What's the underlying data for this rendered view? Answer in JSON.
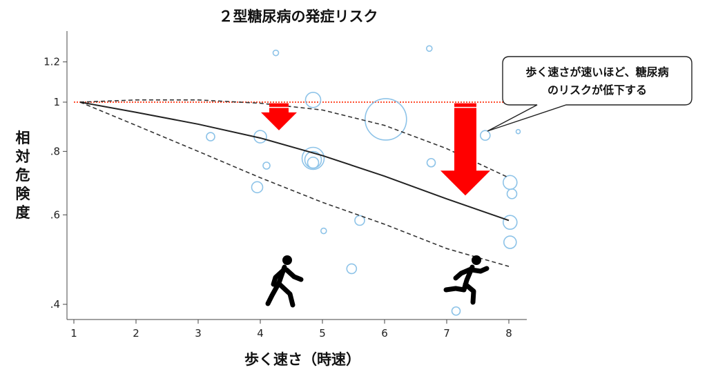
{
  "chart_data": {
    "type": "scatter",
    "title": "２型糖尿病の発症リスク",
    "xlabel": "歩く速さ（時速）",
    "ylabel": "相対危険度",
    "xlim": [
      1,
      8.3
    ],
    "ylim": [
      0.375,
      1.4
    ],
    "y_scale": "log",
    "x_ticks": [
      1,
      2,
      3,
      4,
      5,
      6,
      7,
      8
    ],
    "y_ticks": [
      {
        "value": 0.4,
        "label": ".4"
      },
      {
        "value": 0.6,
        "label": ".6"
      },
      {
        "value": 0.8,
        "label": ".8"
      },
      {
        "value": 1.0,
        "label": "1"
      },
      {
        "value": 1.2,
        "label": "1.2"
      }
    ],
    "reference_line": {
      "y": 1.0,
      "color": "#ff4d2e",
      "style": "dotted"
    },
    "fit_line": {
      "x": [
        1.1,
        2,
        3,
        4,
        5,
        6,
        7,
        8
      ],
      "y": [
        1.0,
        0.955,
        0.905,
        0.85,
        0.785,
        0.715,
        0.645,
        0.585
      ]
    },
    "ci_upper": {
      "x": [
        1.1,
        2,
        3,
        4,
        5,
        6,
        7,
        8
      ],
      "y": [
        1.0,
        1.01,
        1.01,
        0.995,
        0.965,
        0.9,
        0.81,
        0.71
      ]
    },
    "ci_lower": {
      "x": [
        1.1,
        2,
        3,
        4,
        5,
        6,
        7,
        8
      ],
      "y": [
        1.0,
        0.9,
        0.8,
        0.71,
        0.635,
        0.575,
        0.515,
        0.475
      ]
    },
    "points": [
      {
        "x": 3.2,
        "y": 0.855,
        "size": 6
      },
      {
        "x": 4.0,
        "y": 0.855,
        "size": 9
      },
      {
        "x": 4.1,
        "y": 0.75,
        "size": 5
      },
      {
        "x": 3.95,
        "y": 0.68,
        "size": 8
      },
      {
        "x": 4.25,
        "y": 1.25,
        "size": 4
      },
      {
        "x": 4.85,
        "y": 1.01,
        "size": 11
      },
      {
        "x": 4.85,
        "y": 0.775,
        "size": 16
      },
      {
        "x": 4.85,
        "y": 0.77,
        "size": 12
      },
      {
        "x": 4.85,
        "y": 0.76,
        "size": 8
      },
      {
        "x": 5.02,
        "y": 0.558,
        "size": 4
      },
      {
        "x": 5.6,
        "y": 0.585,
        "size": 7
      },
      {
        "x": 5.47,
        "y": 0.47,
        "size": 7
      },
      {
        "x": 6.02,
        "y": 0.925,
        "size": 30
      },
      {
        "x": 6.72,
        "y": 1.275,
        "size": 4
      },
      {
        "x": 6.75,
        "y": 0.76,
        "size": 6
      },
      {
        "x": 7.15,
        "y": 0.388,
        "size": 6
      },
      {
        "x": 7.62,
        "y": 0.86,
        "size": 7
      },
      {
        "x": 8.02,
        "y": 0.695,
        "size": 10
      },
      {
        "x": 8.05,
        "y": 0.66,
        "size": 7
      },
      {
        "x": 8.02,
        "y": 0.58,
        "size": 10
      },
      {
        "x": 8.02,
        "y": 0.53,
        "size": 9
      },
      {
        "x": 8.15,
        "y": 0.875,
        "size": 3
      }
    ],
    "arrows": [
      {
        "x": 4.3,
        "y_from": 0.995,
        "y_to": 0.88
      },
      {
        "x": 7.3,
        "y_from": 0.995,
        "y_to": 0.655
      }
    ],
    "colors": {
      "point": "#8dc3e8",
      "arrow": "#ff0000",
      "fit": "#222222",
      "ci": "#333333",
      "reference": "#ff4d2e"
    },
    "annotation": {
      "line1": "歩く速さが速いほど、糖尿病",
      "line2": "のリスクが低下する",
      "points_to": {
        "x": 7.55,
        "y": 0.87
      }
    },
    "icons": [
      {
        "name": "walking-person-icon",
        "x": 4.4
      },
      {
        "name": "running-person-icon",
        "x": 7.35
      }
    ]
  }
}
